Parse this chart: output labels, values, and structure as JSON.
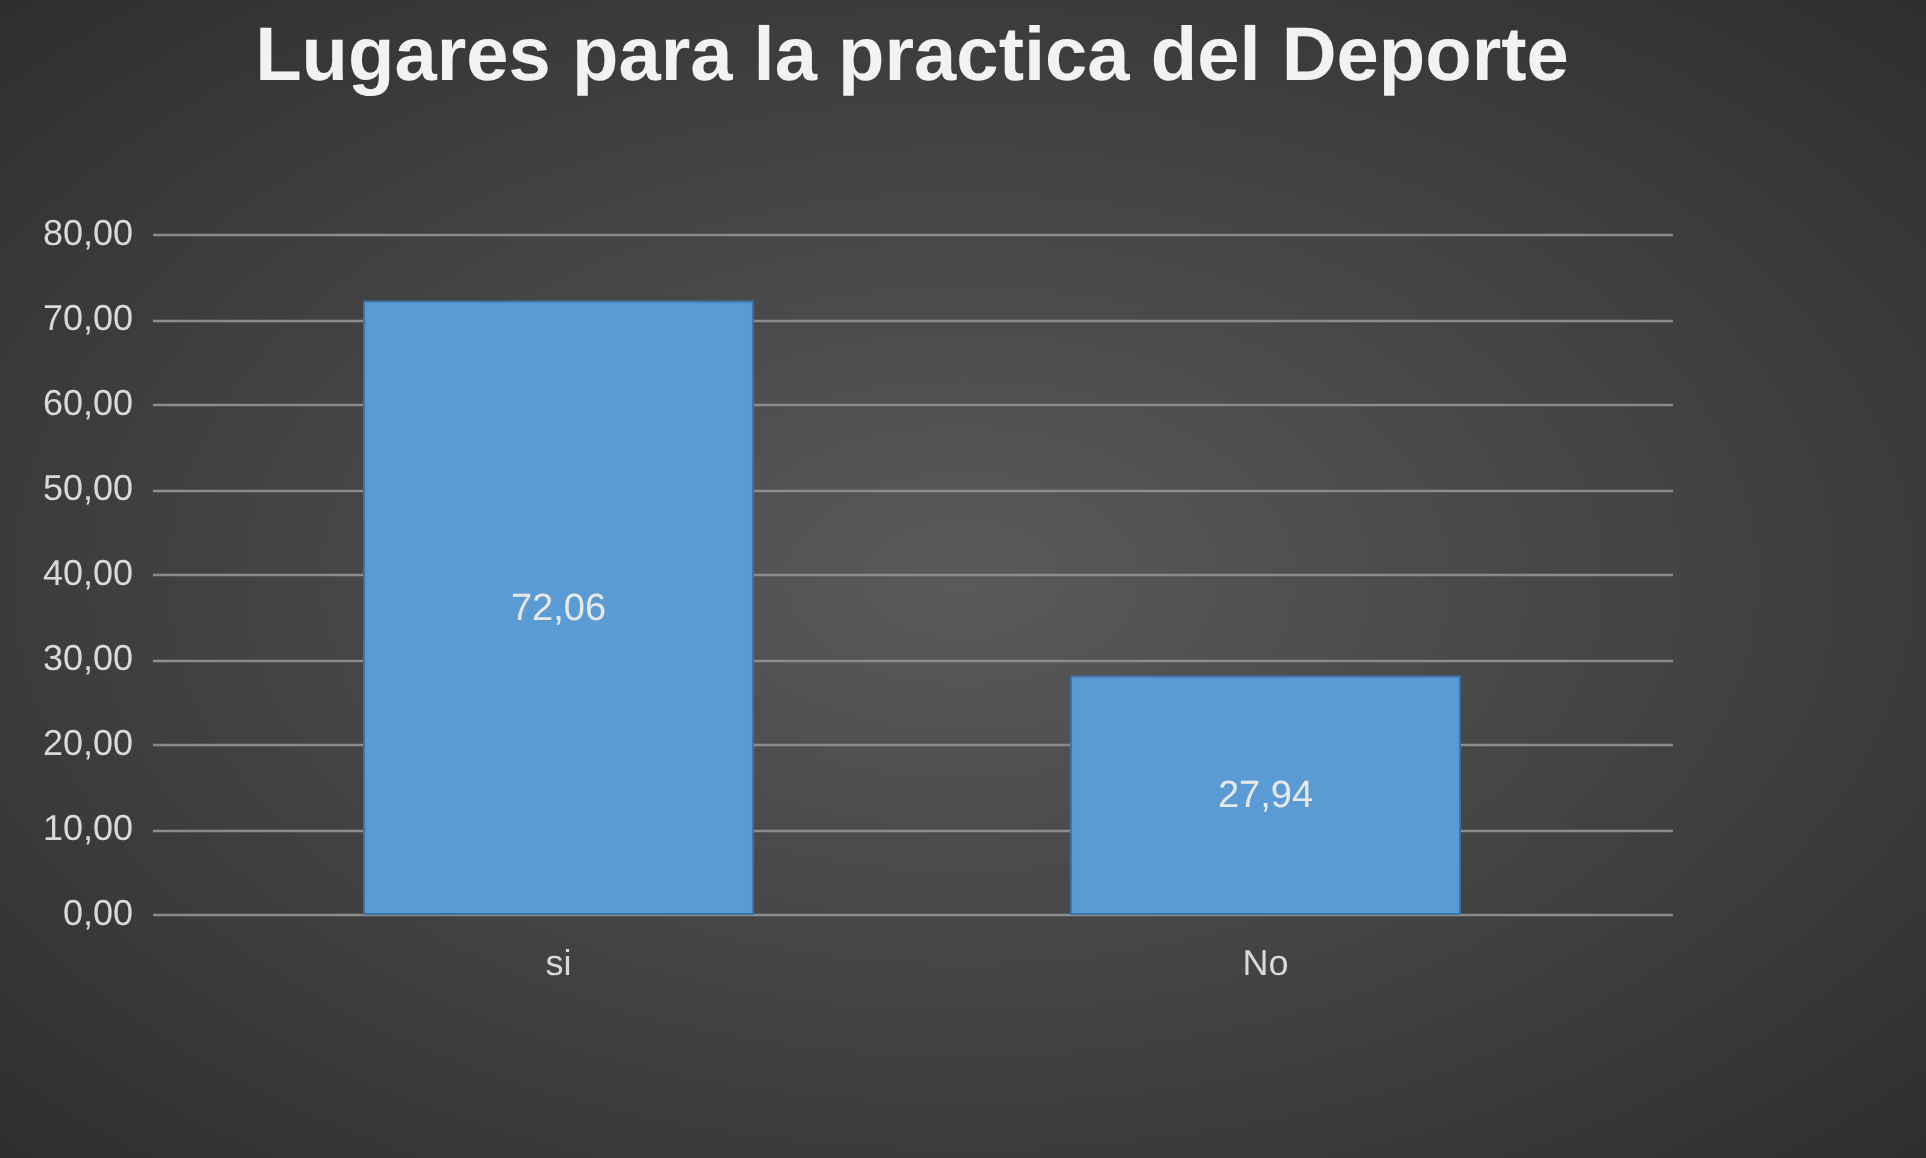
{
  "chart_data": {
    "type": "bar",
    "title": "Lugares para la practica del Deporte",
    "categories": [
      "si",
      "No"
    ],
    "values": [
      72.06,
      27.94
    ],
    "value_labels": [
      "72,06",
      "27,94"
    ],
    "color": "#5b9bd5",
    "ylim": [
      0,
      80
    ],
    "yticks": [
      {
        "value": 0,
        "label": "0,00"
      },
      {
        "value": 10,
        "label": "10,00"
      },
      {
        "value": 20,
        "label": "20,00"
      },
      {
        "value": 30,
        "label": "30,00"
      },
      {
        "value": 40,
        "label": "40,00"
      },
      {
        "value": 50,
        "label": "50,00"
      },
      {
        "value": 60,
        "label": "60,00"
      },
      {
        "value": 70,
        "label": "70,00"
      },
      {
        "value": 80,
        "label": "80,00"
      }
    ],
    "grid": true
  }
}
